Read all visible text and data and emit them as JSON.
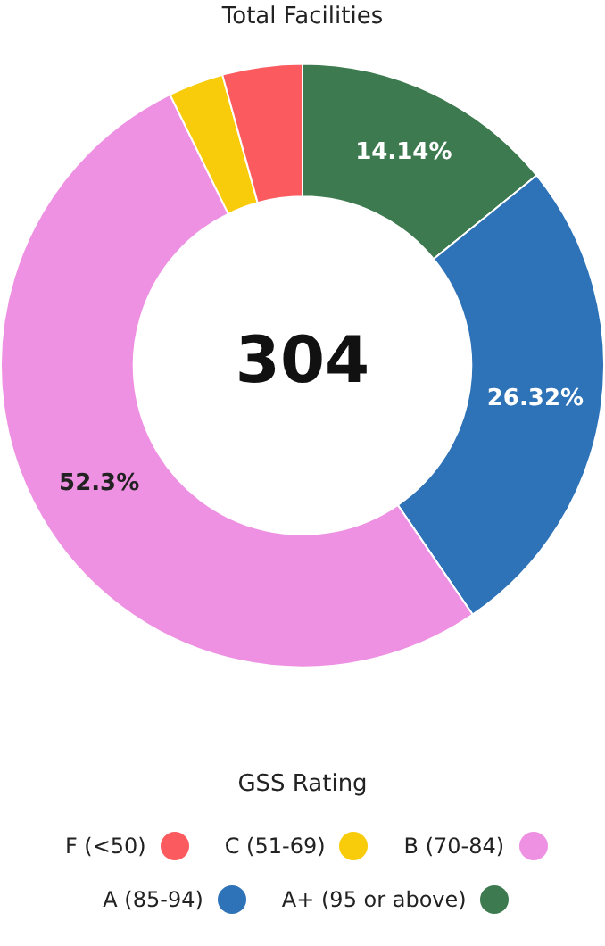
{
  "chart_data": {
    "type": "donut",
    "title": "Total Facilities",
    "legend_title": "GSS Rating",
    "legend": "bottom",
    "categories": [
      "A+ (95 or above)",
      "A (85-94)",
      "B (70-84)",
      "C (51-69)",
      "F (<50)"
    ],
    "values": [
      14.14,
      26.32,
      52.3,
      2.96,
      4.28
    ],
    "colors": [
      "#3d7a4f",
      "#2e72b8",
      "#ee91e3",
      "#f9cc0b",
      "#fb5b5f"
    ],
    "value_labels": [
      "14.14%",
      "26.32%",
      "52.3%",
      null,
      null
    ],
    "annotations": [
      "304"
    ]
  }
}
